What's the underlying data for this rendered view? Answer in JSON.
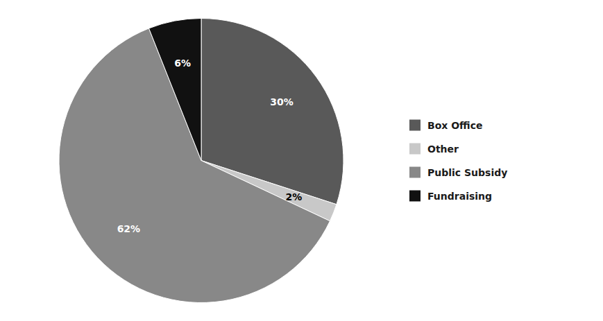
{
  "chart_data": {
    "type": "pie",
    "categories": [
      "Box Office",
      "Other",
      "Public Subsidy",
      "Fundraising"
    ],
    "values": [
      30,
      2,
      62,
      6
    ],
    "value_labels": [
      "30%",
      "2%",
      "62%",
      "6%"
    ],
    "colors": [
      "#595959",
      "#c8c8c8",
      "#888888",
      "#111111"
    ],
    "data_labels": true,
    "legend": "right"
  }
}
